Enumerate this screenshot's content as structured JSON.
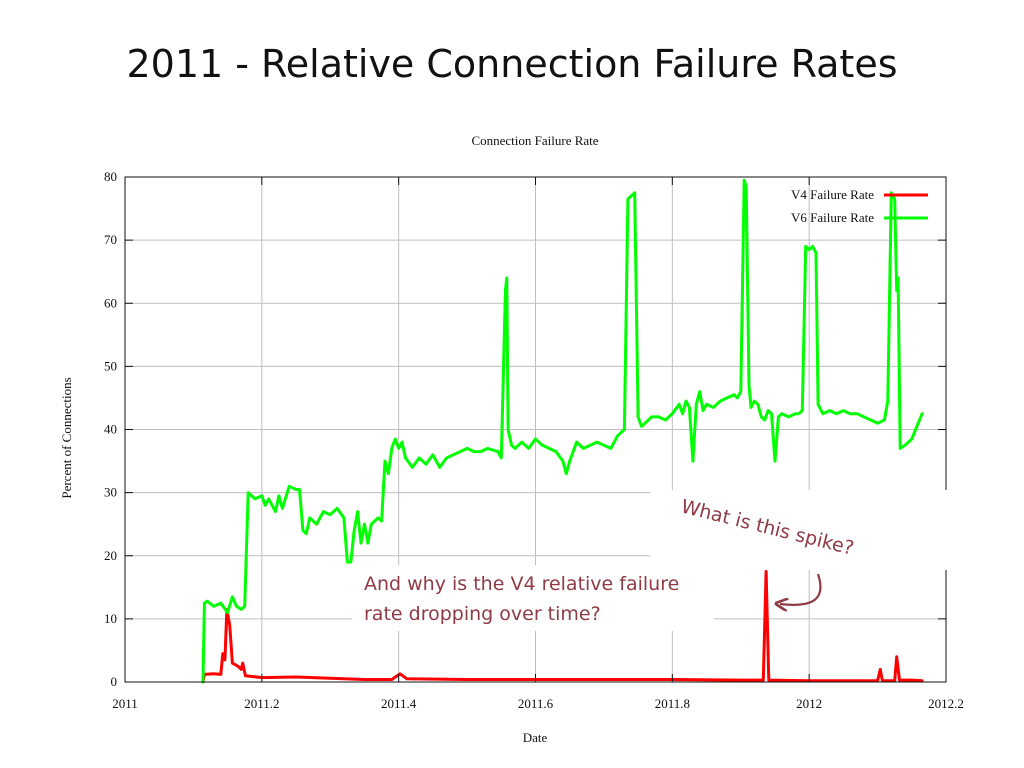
{
  "slide": {
    "title": "2011 - Relative Connection Failure Rates"
  },
  "annotations": {
    "spike": "What is this spike?",
    "dropping_line1": "And why is the V4 relative failure",
    "dropping_line2": "rate dropping over time?"
  },
  "colors": {
    "v4": "#ff0000",
    "v6": "#00ff00",
    "annotation": "#8e3b45",
    "grid": "#bfbfbf"
  },
  "chart_data": {
    "type": "line",
    "title": "Connection Failure Rate",
    "xlabel": "Date",
    "ylabel": "Percent of Connections",
    "xlim": [
      2011,
      2012.2
    ],
    "ylim": [
      0,
      80
    ],
    "xticks": [
      2011,
      2011.2,
      2011.4,
      2011.6,
      2011.8,
      2012,
      2012.2
    ],
    "xtick_labels": [
      "2011",
      "2011.2",
      "2011.4",
      "2011.6",
      "2011.8",
      "2012",
      "2012.2"
    ],
    "yticks": [
      0,
      10,
      20,
      30,
      40,
      50,
      60,
      70,
      80
    ],
    "grid": true,
    "legend_position": "top-right",
    "series": [
      {
        "name": "V4 Failure Rate",
        "color": "#ff0000",
        "points": [
          [
            2011.114,
            0.0
          ],
          [
            2011.116,
            1.2
          ],
          [
            2011.13,
            1.3
          ],
          [
            2011.14,
            1.2
          ],
          [
            2011.143,
            4.5
          ],
          [
            2011.146,
            3.5
          ],
          [
            2011.149,
            11.5
          ],
          [
            2011.153,
            9.0
          ],
          [
            2011.157,
            3.0
          ],
          [
            2011.165,
            2.5
          ],
          [
            2011.17,
            2.0
          ],
          [
            2011.172,
            3.0
          ],
          [
            2011.176,
            1.0
          ],
          [
            2011.2,
            0.7
          ],
          [
            2011.25,
            0.8
          ],
          [
            2011.3,
            0.6
          ],
          [
            2011.35,
            0.4
          ],
          [
            2011.39,
            0.4
          ],
          [
            2011.402,
            1.3
          ],
          [
            2011.412,
            0.5
          ],
          [
            2011.5,
            0.4
          ],
          [
            2011.6,
            0.4
          ],
          [
            2011.7,
            0.4
          ],
          [
            2011.8,
            0.4
          ],
          [
            2011.9,
            0.3
          ],
          [
            2011.933,
            0.3
          ],
          [
            2011.937,
            17.5
          ],
          [
            2011.941,
            0.3
          ],
          [
            2012.0,
            0.2
          ],
          [
            2012.1,
            0.2
          ],
          [
            2012.104,
            2.0
          ],
          [
            2012.107,
            0.2
          ],
          [
            2012.125,
            0.2
          ],
          [
            2012.128,
            4.0
          ],
          [
            2012.132,
            0.3
          ],
          [
            2012.15,
            0.3
          ],
          [
            2012.165,
            0.2
          ]
        ]
      },
      {
        "name": "V6 Failure Rate",
        "color": "#00ff00",
        "points": [
          [
            2011.114,
            0.0
          ],
          [
            2011.116,
            12.5
          ],
          [
            2011.12,
            12.8
          ],
          [
            2011.13,
            12.0
          ],
          [
            2011.14,
            12.5
          ],
          [
            2011.15,
            11.0
          ],
          [
            2011.157,
            13.5
          ],
          [
            2011.163,
            12.0
          ],
          [
            2011.17,
            11.5
          ],
          [
            2011.175,
            12.0
          ],
          [
            2011.18,
            30.0
          ],
          [
            2011.19,
            29.0
          ],
          [
            2011.2,
            29.5
          ],
          [
            2011.205,
            28.0
          ],
          [
            2011.21,
            29.0
          ],
          [
            2011.22,
            27.0
          ],
          [
            2011.225,
            29.5
          ],
          [
            2011.23,
            27.5
          ],
          [
            2011.24,
            31.0
          ],
          [
            2011.25,
            30.5
          ],
          [
            2011.255,
            30.5
          ],
          [
            2011.26,
            24.0
          ],
          [
            2011.265,
            23.5
          ],
          [
            2011.27,
            26.0
          ],
          [
            2011.28,
            25.0
          ],
          [
            2011.29,
            27.0
          ],
          [
            2011.3,
            26.5
          ],
          [
            2011.31,
            27.5
          ],
          [
            2011.32,
            26.0
          ],
          [
            2011.325,
            19.0
          ],
          [
            2011.33,
            19.0
          ],
          [
            2011.335,
            24.0
          ],
          [
            2011.34,
            27.0
          ],
          [
            2011.345,
            22.0
          ],
          [
            2011.35,
            25.0
          ],
          [
            2011.355,
            22.0
          ],
          [
            2011.36,
            25.0
          ],
          [
            2011.37,
            26.0
          ],
          [
            2011.375,
            25.5
          ],
          [
            2011.38,
            35.0
          ],
          [
            2011.385,
            33.0
          ],
          [
            2011.39,
            37.0
          ],
          [
            2011.395,
            38.5
          ],
          [
            2011.4,
            37.0
          ],
          [
            2011.405,
            38.0
          ],
          [
            2011.41,
            35.5
          ],
          [
            2011.42,
            34.0
          ],
          [
            2011.43,
            35.5
          ],
          [
            2011.44,
            34.5
          ],
          [
            2011.45,
            36.0
          ],
          [
            2011.46,
            34.0
          ],
          [
            2011.47,
            35.5
          ],
          [
            2011.48,
            36.0
          ],
          [
            2011.49,
            36.5
          ],
          [
            2011.5,
            37.0
          ],
          [
            2011.51,
            36.5
          ],
          [
            2011.52,
            36.5
          ],
          [
            2011.53,
            37.0
          ],
          [
            2011.545,
            36.5
          ],
          [
            2011.55,
            35.5
          ],
          [
            2011.556,
            62.0
          ],
          [
            2011.558,
            64.0
          ],
          [
            2011.56,
            40.0
          ],
          [
            2011.565,
            37.5
          ],
          [
            2011.57,
            37.0
          ],
          [
            2011.58,
            38.0
          ],
          [
            2011.59,
            37.0
          ],
          [
            2011.6,
            38.5
          ],
          [
            2011.61,
            37.5
          ],
          [
            2011.62,
            37.0
          ],
          [
            2011.63,
            36.5
          ],
          [
            2011.64,
            35.0
          ],
          [
            2011.645,
            33.0
          ],
          [
            2011.65,
            35.0
          ],
          [
            2011.66,
            38.0
          ],
          [
            2011.67,
            37.0
          ],
          [
            2011.68,
            37.5
          ],
          [
            2011.69,
            38.0
          ],
          [
            2011.7,
            37.5
          ],
          [
            2011.71,
            37.0
          ],
          [
            2011.72,
            39.0
          ],
          [
            2011.73,
            40.0
          ],
          [
            2011.735,
            76.5
          ],
          [
            2011.74,
            77.0
          ],
          [
            2011.745,
            77.5
          ],
          [
            2011.75,
            42.0
          ],
          [
            2011.755,
            40.5
          ],
          [
            2011.76,
            41.0
          ],
          [
            2011.77,
            42.0
          ],
          [
            2011.78,
            42.0
          ],
          [
            2011.79,
            41.5
          ],
          [
            2011.8,
            42.5
          ],
          [
            2011.81,
            44.0
          ],
          [
            2011.815,
            42.5
          ],
          [
            2011.82,
            44.5
          ],
          [
            2011.825,
            43.5
          ],
          [
            2011.83,
            35.0
          ],
          [
            2011.835,
            44.0
          ],
          [
            2011.84,
            46.0
          ],
          [
            2011.845,
            43.0
          ],
          [
            2011.85,
            44.0
          ],
          [
            2011.86,
            43.5
          ],
          [
            2011.87,
            44.5
          ],
          [
            2011.88,
            45.0
          ],
          [
            2011.89,
            45.5
          ],
          [
            2011.895,
            45.0
          ],
          [
            2011.9,
            46.0
          ],
          [
            2011.905,
            79.5
          ],
          [
            2011.908,
            78.5
          ],
          [
            2011.912,
            47.0
          ],
          [
            2011.915,
            43.5
          ],
          [
            2011.92,
            44.5
          ],
          [
            2011.925,
            44.0
          ],
          [
            2011.93,
            42.0
          ],
          [
            2011.935,
            41.5
          ],
          [
            2011.94,
            43.0
          ],
          [
            2011.945,
            42.5
          ],
          [
            2011.95,
            35.0
          ],
          [
            2011.955,
            42.0
          ],
          [
            2011.96,
            42.5
          ],
          [
            2011.97,
            42.0
          ],
          [
            2011.98,
            42.5
          ],
          [
            2011.985,
            42.5
          ],
          [
            2011.99,
            43.0
          ],
          [
            2011.995,
            69.0
          ],
          [
            2012.0,
            68.5
          ],
          [
            2012.005,
            69.0
          ],
          [
            2012.01,
            68.0
          ],
          [
            2012.013,
            44.0
          ],
          [
            2012.02,
            42.5
          ],
          [
            2012.03,
            43.0
          ],
          [
            2012.04,
            42.5
          ],
          [
            2012.05,
            43.0
          ],
          [
            2012.06,
            42.5
          ],
          [
            2012.07,
            42.5
          ],
          [
            2012.08,
            42.0
          ],
          [
            2012.09,
            41.5
          ],
          [
            2012.1,
            41.0
          ],
          [
            2012.11,
            41.5
          ],
          [
            2012.115,
            44.5
          ],
          [
            2012.12,
            77.5
          ],
          [
            2012.125,
            76.5
          ],
          [
            2012.128,
            62.0
          ],
          [
            2012.13,
            64.0
          ],
          [
            2012.133,
            37.0
          ],
          [
            2012.14,
            37.5
          ],
          [
            2012.15,
            38.5
          ],
          [
            2012.165,
            42.5
          ]
        ]
      }
    ]
  }
}
